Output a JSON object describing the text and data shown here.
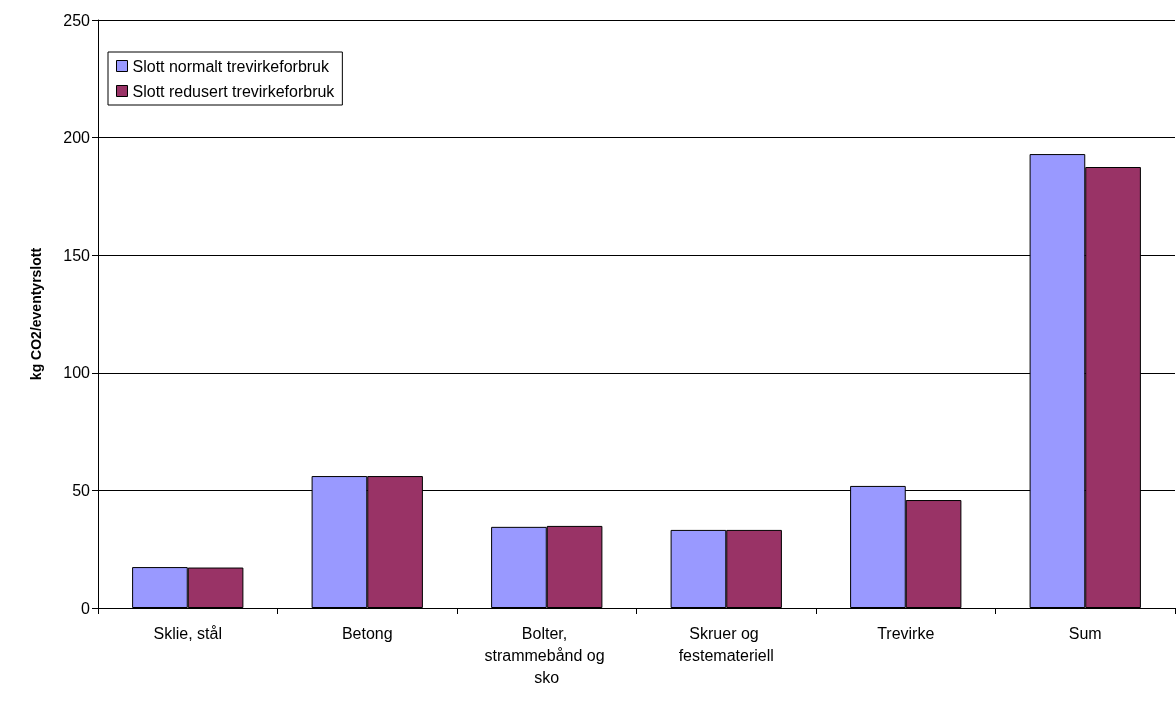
{
  "chart_data": {
    "type": "bar",
    "ylabel": "kg CO2/eventyrslott",
    "categories": [
      "Sklie, stål",
      "Betong",
      "Bolter, strammebånd og sko",
      "Skruer og festemateriell",
      "Trevirke",
      "Sum"
    ],
    "series": [
      {
        "name": "Slott normalt trevirkeforbruk",
        "color": "#9999ff",
        "values": [
          17.4,
          56.1,
          34.5,
          33.2,
          51.9,
          193
        ]
      },
      {
        "name": "Slott redusert trevirkeforbruk",
        "color": "#993366",
        "values": [
          17.2,
          56.1,
          34.9,
          33.2,
          45.9,
          187.5
        ]
      }
    ],
    "ylim": [
      0,
      250
    ],
    "yticks": [
      0,
      50,
      100,
      150,
      200,
      250
    ],
    "grid": "y",
    "legend": "top left"
  }
}
